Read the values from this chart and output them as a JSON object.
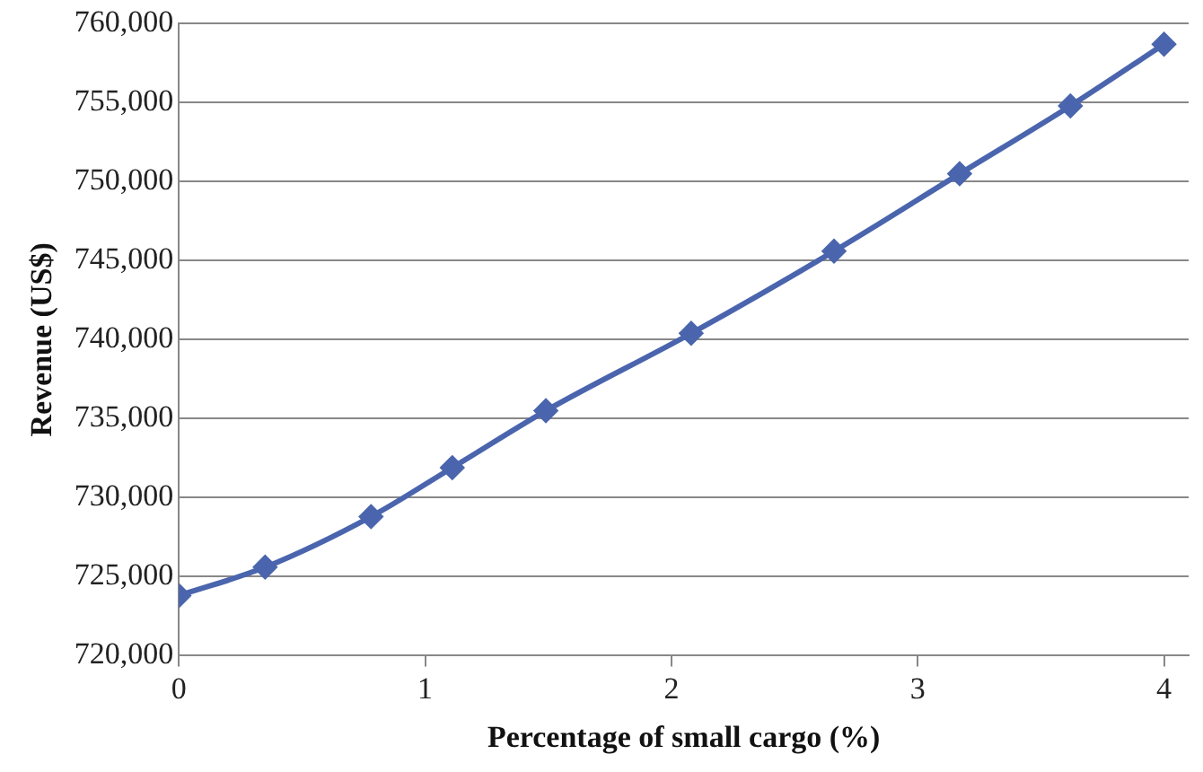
{
  "chart_data": {
    "type": "line",
    "xlabel": "Percentage of small cargo (%)",
    "ylabel": "Revenue (US$)",
    "x": [
      0,
      0.35,
      0.78,
      1.11,
      1.49,
      2.08,
      2.66,
      3.17,
      3.62,
      4.0
    ],
    "series": [
      {
        "color": "#4a65ad",
        "values": [
          723800,
          725600,
          728800,
          731900,
          735500,
          740400,
          745600,
          750500,
          754800,
          758700
        ]
      }
    ],
    "xlim": [
      0,
      4.1
    ],
    "xticks": [
      0,
      1,
      2,
      3,
      4
    ],
    "ylim": [
      720000,
      760000
    ],
    "yticks": [
      {
        "value": 720000,
        "label": "720,000"
      },
      {
        "value": 725000,
        "label": "725,000"
      },
      {
        "value": 730000,
        "label": "730,000"
      },
      {
        "value": 735000,
        "label": "735,000"
      },
      {
        "value": 740000,
        "label": "740,000"
      },
      {
        "value": 745000,
        "label": "745,000"
      },
      {
        "value": 750000,
        "label": "750,000"
      },
      {
        "value": 755000,
        "label": "755,000"
      },
      {
        "value": 760000,
        "label": "760,000"
      }
    ],
    "grid": "y",
    "marker": "diamond",
    "line_style": "solid",
    "legend": false
  }
}
